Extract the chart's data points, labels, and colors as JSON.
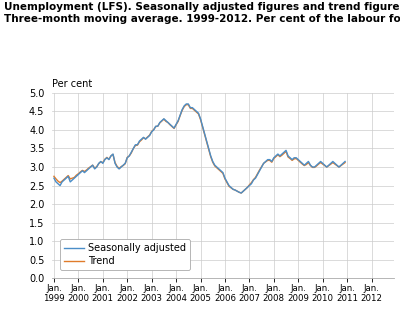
{
  "title_line1": "Unemployment (LFS). Seasonally adjusted figures and trend figures.",
  "title_line2": "Three-month moving average. 1999-2012. Per cent of the labour force",
  "ylabel": "Per cent",
  "ylim": [
    0.0,
    5.0
  ],
  "yticks": [
    0.0,
    0.5,
    1.0,
    1.5,
    2.0,
    2.5,
    3.0,
    3.5,
    4.0,
    4.5,
    5.0
  ],
  "xlim_start": 1999.0,
  "xlim_end": 2012.92,
  "xtick_years": [
    1999,
    2000,
    2001,
    2002,
    2003,
    2004,
    2005,
    2006,
    2007,
    2008,
    2009,
    2010,
    2011,
    2012
  ],
  "color_seasonally": "#4b8ec8",
  "color_trend": "#e07b2a",
  "legend_labels": [
    "Seasonally adjusted",
    "Trend"
  ],
  "background_color": "#ffffff",
  "grid_color": "#cccccc",
  "seasonally_adjusted": [
    2.7,
    2.6,
    2.55,
    2.5,
    2.6,
    2.65,
    2.7,
    2.75,
    2.6,
    2.65,
    2.7,
    2.75,
    2.8,
    2.85,
    2.9,
    2.85,
    2.9,
    2.95,
    3.0,
    3.05,
    2.95,
    3.0,
    3.1,
    3.15,
    3.1,
    3.2,
    3.25,
    3.2,
    3.3,
    3.35,
    3.1,
    3.0,
    2.95,
    3.0,
    3.05,
    3.1,
    3.25,
    3.3,
    3.4,
    3.5,
    3.6,
    3.6,
    3.7,
    3.75,
    3.8,
    3.75,
    3.8,
    3.85,
    3.95,
    4.0,
    4.1,
    4.1,
    4.2,
    4.25,
    4.3,
    4.25,
    4.2,
    4.15,
    4.1,
    4.05,
    4.15,
    4.25,
    4.4,
    4.55,
    4.65,
    4.7,
    4.7,
    4.6,
    4.6,
    4.55,
    4.5,
    4.45,
    4.3,
    4.1,
    3.9,
    3.7,
    3.5,
    3.3,
    3.15,
    3.05,
    3.0,
    2.95,
    2.9,
    2.85,
    2.7,
    2.6,
    2.5,
    2.45,
    2.4,
    2.38,
    2.35,
    2.32,
    2.3,
    2.35,
    2.4,
    2.45,
    2.5,
    2.55,
    2.65,
    2.7,
    2.8,
    2.9,
    3.0,
    3.1,
    3.15,
    3.2,
    3.2,
    3.15,
    3.25,
    3.3,
    3.35,
    3.3,
    3.35,
    3.4,
    3.45,
    3.3,
    3.25,
    3.2,
    3.25,
    3.25,
    3.2,
    3.15,
    3.1,
    3.05,
    3.1,
    3.15,
    3.05,
    3.0,
    3.0,
    3.05,
    3.1,
    3.15,
    3.1,
    3.05,
    3.0,
    3.05,
    3.1,
    3.15,
    3.1,
    3.05,
    3.0,
    3.05,
    3.1,
    3.15
  ],
  "trend": [
    2.75,
    2.68,
    2.62,
    2.58,
    2.62,
    2.67,
    2.72,
    2.77,
    2.68,
    2.7,
    2.72,
    2.78,
    2.82,
    2.87,
    2.91,
    2.88,
    2.92,
    2.97,
    3.01,
    3.05,
    2.97,
    3.01,
    3.09,
    3.14,
    3.12,
    3.21,
    3.26,
    3.21,
    3.3,
    3.34,
    3.12,
    3.02,
    2.96,
    3.01,
    3.04,
    3.09,
    3.26,
    3.3,
    3.38,
    3.5,
    3.58,
    3.59,
    3.68,
    3.73,
    3.79,
    3.76,
    3.81,
    3.86,
    3.96,
    4.01,
    4.09,
    4.1,
    4.19,
    4.24,
    4.29,
    4.23,
    4.2,
    4.14,
    4.09,
    4.04,
    4.14,
    4.23,
    4.39,
    4.53,
    4.63,
    4.68,
    4.68,
    4.58,
    4.58,
    4.53,
    4.48,
    4.43,
    4.28,
    4.08,
    3.88,
    3.68,
    3.48,
    3.28,
    3.13,
    3.03,
    2.98,
    2.93,
    2.88,
    2.83,
    2.68,
    2.58,
    2.48,
    2.44,
    2.4,
    2.38,
    2.35,
    2.32,
    2.3,
    2.35,
    2.4,
    2.45,
    2.52,
    2.58,
    2.66,
    2.72,
    2.82,
    2.92,
    3.01,
    3.1,
    3.14,
    3.18,
    3.18,
    3.13,
    3.23,
    3.28,
    3.33,
    3.28,
    3.32,
    3.37,
    3.42,
    3.27,
    3.23,
    3.18,
    3.22,
    3.23,
    3.18,
    3.13,
    3.08,
    3.04,
    3.07,
    3.12,
    3.04,
    2.99,
    2.99,
    3.03,
    3.08,
    3.12,
    3.08,
    3.04,
    3.0,
    3.04,
    3.08,
    3.12,
    3.08,
    3.04,
    3.0,
    3.04,
    3.08,
    3.12
  ]
}
